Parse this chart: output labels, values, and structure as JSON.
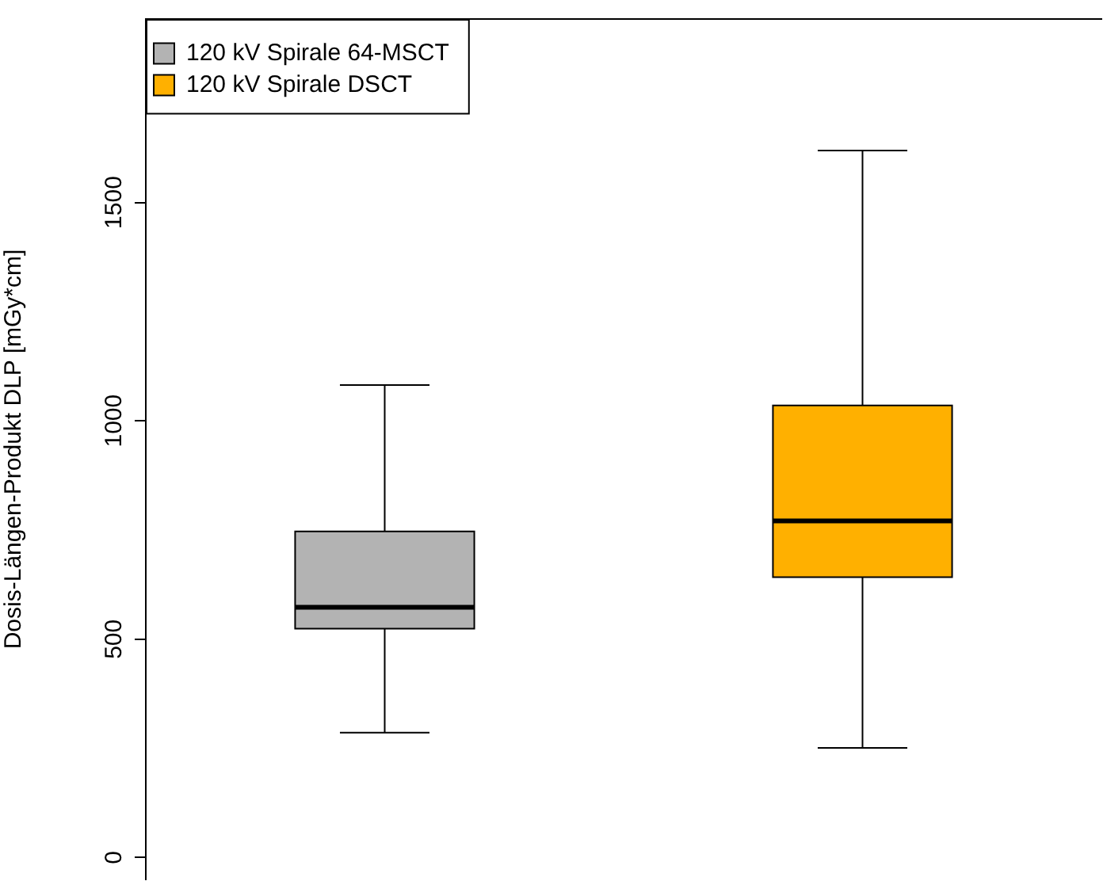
{
  "chart_data": {
    "type": "box",
    "ylabel": "Dosis-Längen-Produkt DLP [mGy*cm]",
    "categories": [
      null,
      null
    ],
    "series": [
      {
        "name": "120 kV Spirale 64-MSCT",
        "color": "#b3b3b3",
        "boxes": [
          {
            "low": 286,
            "q1": 524,
            "median": 573,
            "q3": 747,
            "high": 1082
          },
          null
        ]
      },
      {
        "name": "120 kV Spirale DSCT",
        "color": "#ffb000",
        "boxes": [
          null,
          {
            "low": 251,
            "q1": 642,
            "median": 771,
            "q3": 1035,
            "high": 1619
          }
        ]
      }
    ],
    "ylim": [
      -50,
      1920
    ],
    "yticks": [
      0,
      500,
      1000,
      1500
    ],
    "grid": false,
    "legend": "top left",
    "tick_labels": "y"
  }
}
